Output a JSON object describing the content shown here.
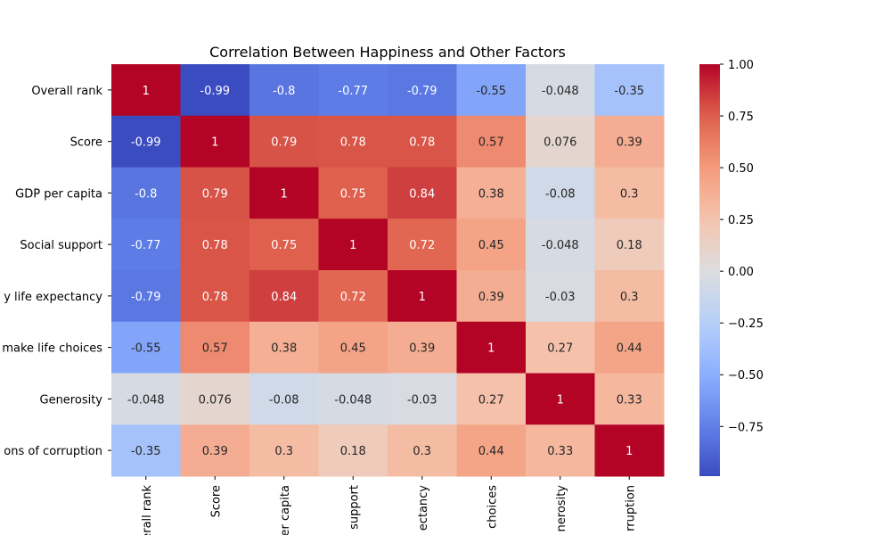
{
  "chart_data": {
    "type": "heatmap",
    "title": "Correlation Between Happiness and Other Factors",
    "row_labels": [
      "Overall rank",
      "Score",
      "GDP per capita",
      "Social support",
      "y life expectancy",
      "make life choices",
      "Generosity",
      "ons of corruption"
    ],
    "col_labels": [
      "erall rank",
      "Score",
      "er capita",
      "support",
      "ectancy",
      "choices",
      "nerosity",
      "rruption"
    ],
    "values": [
      [
        1,
        -0.99,
        -0.8,
        -0.77,
        -0.79,
        -0.55,
        -0.048,
        -0.35
      ],
      [
        -0.99,
        1,
        0.79,
        0.78,
        0.78,
        0.57,
        0.076,
        0.39
      ],
      [
        -0.8,
        0.79,
        1,
        0.75,
        0.84,
        0.38,
        -0.08,
        0.3
      ],
      [
        -0.77,
        0.78,
        0.75,
        1,
        0.72,
        0.45,
        -0.048,
        0.18
      ],
      [
        -0.79,
        0.78,
        0.84,
        0.72,
        1,
        0.39,
        -0.03,
        0.3
      ],
      [
        -0.55,
        0.57,
        0.38,
        0.45,
        0.39,
        1,
        0.27,
        0.44
      ],
      [
        -0.048,
        0.076,
        -0.08,
        -0.048,
        -0.03,
        0.27,
        1,
        0.33
      ],
      [
        -0.35,
        0.39,
        0.3,
        0.18,
        0.3,
        0.44,
        0.33,
        1
      ]
    ],
    "colorscale": "coolwarm",
    "vmin": -0.99,
    "vmax": 1.0,
    "colorbar_ticks": [
      "1.00",
      "0.75",
      "0.50",
      "0.25",
      "0.00",
      "−0.25",
      "−0.50",
      "−0.75"
    ],
    "colorbar_tick_values": [
      1.0,
      0.75,
      0.5,
      0.25,
      0.0,
      -0.25,
      -0.5,
      -0.75
    ]
  }
}
